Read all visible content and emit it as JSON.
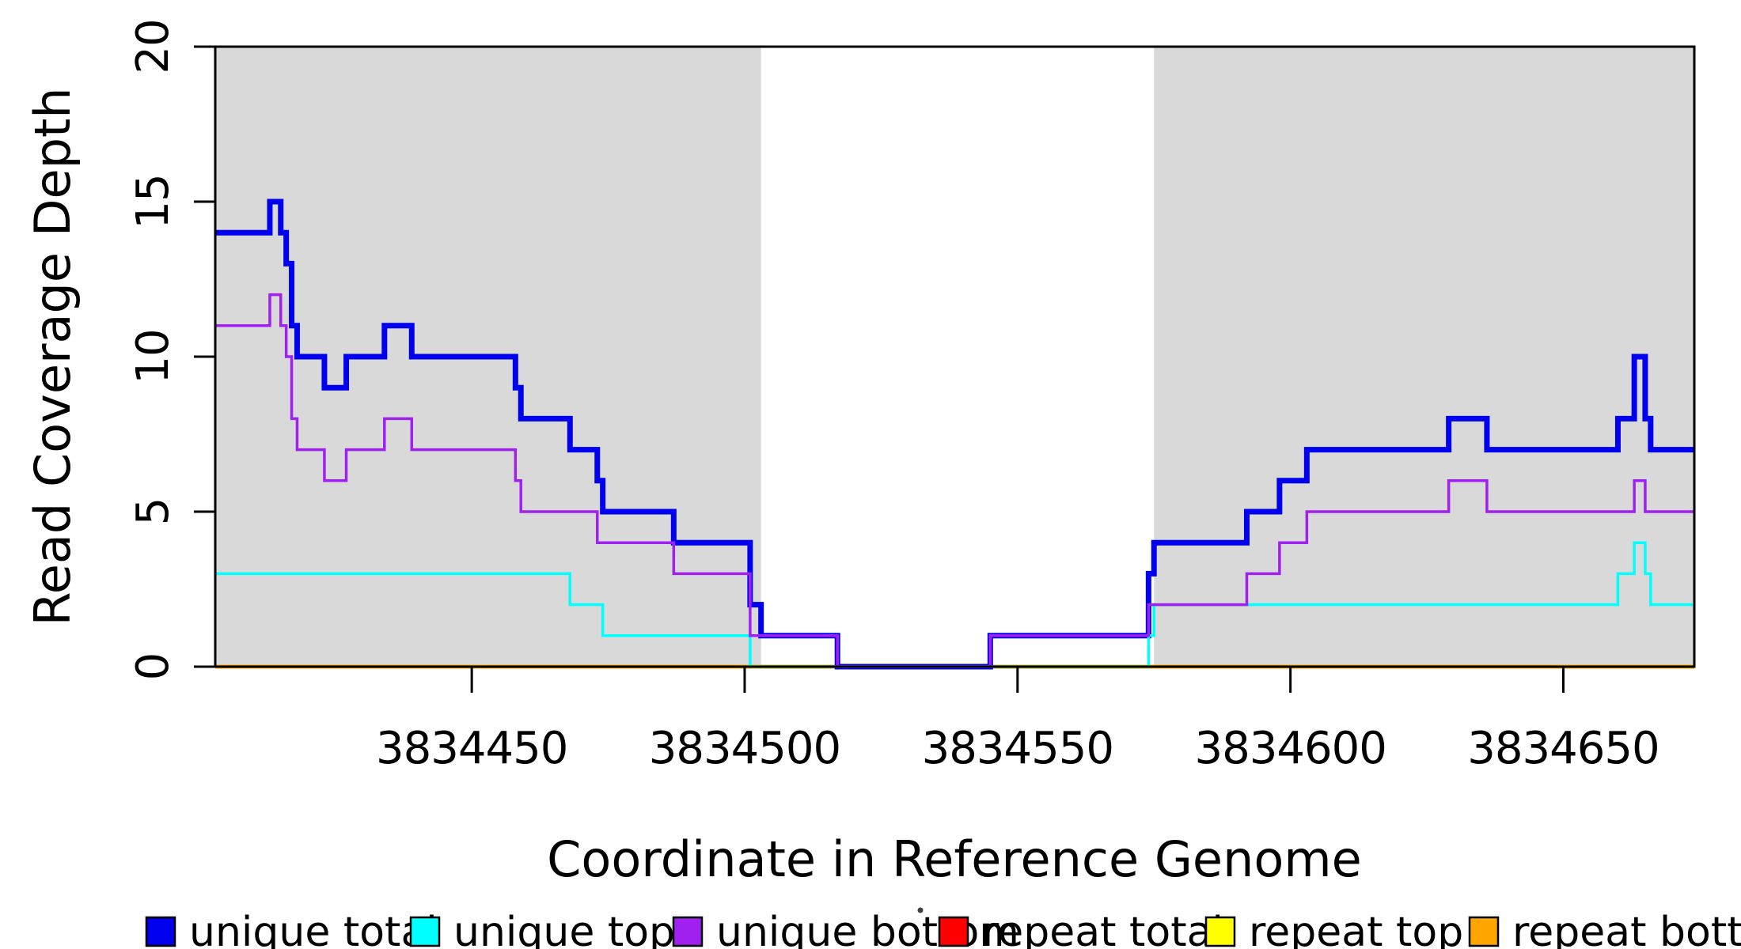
{
  "chart_data": {
    "type": "line",
    "subtype": "step",
    "title": "",
    "xlabel": "Coordinate in Reference Genome",
    "ylabel": "Read Coverage Depth",
    "xlim": [
      3834403,
      3834674
    ],
    "ylim": [
      0,
      20
    ],
    "x_ticks": [
      3834450,
      3834500,
      3834550,
      3834600,
      3834650
    ],
    "y_ticks": [
      0,
      5,
      10,
      15,
      20
    ],
    "grid": false,
    "plot_background": "#ffffff",
    "shaded_regions": {
      "color": "#d9d9d9",
      "regions": [
        [
          3834403,
          3834503
        ],
        [
          3834575,
          3834674
        ]
      ]
    },
    "axis_color": "#000000",
    "draw_order": [
      3,
      4,
      5,
      0,
      1,
      2
    ],
    "series": [
      {
        "name": "unique total",
        "color": "#0000ee",
        "line_width": 7,
        "steps": [
          [
            3834403,
            14
          ],
          [
            3834413,
            15
          ],
          [
            3834415,
            14
          ],
          [
            3834416,
            13
          ],
          [
            3834417,
            11
          ],
          [
            3834418,
            10
          ],
          [
            3834423,
            9
          ],
          [
            3834427,
            10
          ],
          [
            3834434,
            11
          ],
          [
            3834439,
            10
          ],
          [
            3834458,
            9
          ],
          [
            3834459,
            8
          ],
          [
            3834468,
            7
          ],
          [
            3834473,
            6
          ],
          [
            3834474,
            5
          ],
          [
            3834487,
            4
          ],
          [
            3834501,
            2
          ],
          [
            3834503,
            1
          ],
          [
            3834517,
            0
          ],
          [
            3834545,
            1
          ],
          [
            3834574,
            3
          ],
          [
            3834575,
            4
          ],
          [
            3834592,
            5
          ],
          [
            3834598,
            6
          ],
          [
            3834603,
            7
          ],
          [
            3834629,
            8
          ],
          [
            3834636,
            7
          ],
          [
            3834660,
            8
          ],
          [
            3834663,
            10
          ],
          [
            3834665,
            8
          ],
          [
            3834666,
            7
          ]
        ]
      },
      {
        "name": "unique top",
        "color": "#00ffff",
        "line_width": 3.5,
        "steps": [
          [
            3834403,
            3
          ],
          [
            3834468,
            2
          ],
          [
            3834474,
            1
          ],
          [
            3834501,
            0
          ],
          [
            3834574,
            1
          ],
          [
            3834575,
            2
          ],
          [
            3834660,
            3
          ],
          [
            3834663,
            4
          ],
          [
            3834665,
            3
          ],
          [
            3834666,
            2
          ]
        ]
      },
      {
        "name": "unique bottom",
        "color": "#a020f0",
        "line_width": 3.5,
        "steps": [
          [
            3834403,
            11
          ],
          [
            3834413,
            12
          ],
          [
            3834415,
            11
          ],
          [
            3834416,
            10
          ],
          [
            3834417,
            8
          ],
          [
            3834418,
            7
          ],
          [
            3834423,
            6
          ],
          [
            3834427,
            7
          ],
          [
            3834434,
            8
          ],
          [
            3834439,
            7
          ],
          [
            3834458,
            6
          ],
          [
            3834459,
            5
          ],
          [
            3834473,
            4
          ],
          [
            3834487,
            3
          ],
          [
            3834501,
            1
          ],
          [
            3834517,
            0
          ],
          [
            3834545,
            1
          ],
          [
            3834574,
            2
          ],
          [
            3834592,
            3
          ],
          [
            3834598,
            4
          ],
          [
            3834603,
            5
          ],
          [
            3834629,
            6
          ],
          [
            3834636,
            5
          ],
          [
            3834663,
            6
          ],
          [
            3834665,
            5
          ]
        ]
      },
      {
        "name": "repeat total",
        "color": "#ff0000",
        "line_width": 4,
        "steps": [
          [
            3834403,
            0
          ]
        ]
      },
      {
        "name": "repeat top",
        "color": "#ffff00",
        "line_width": 4,
        "steps": [
          [
            3834403,
            0
          ]
        ]
      },
      {
        "name": "repeat bottom",
        "color": "#ffa500",
        "line_width": 5,
        "steps": [
          [
            3834403,
            0
          ]
        ]
      }
    ],
    "legend": {
      "position": "bottom",
      "entries": [
        {
          "label": "unique total",
          "color": "#0000ee"
        },
        {
          "label": "unique top",
          "color": "#00ffff"
        },
        {
          "label": "unique bottom",
          "color": "#a020f0"
        },
        {
          "label": "repeat total",
          "color": "#ff0000"
        },
        {
          "label": "repeat top",
          "color": "#ffff00"
        },
        {
          "label": "repeat bottom",
          "color": "#ffa500"
        }
      ]
    }
  }
}
